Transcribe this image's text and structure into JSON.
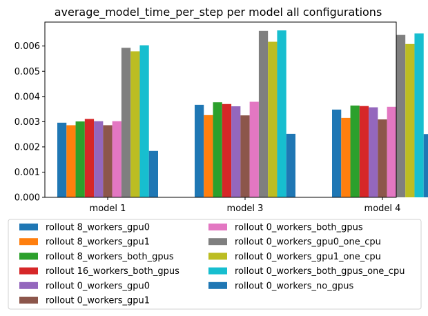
{
  "chart_data": {
    "type": "bar",
    "title": "average_model_time_per_step per model all configurations",
    "xlabel": "",
    "ylabel": "",
    "categories": [
      "model 1",
      "model 3",
      "model 4"
    ],
    "ylim": [
      0,
      0.00695
    ],
    "yticks": [
      "0.000",
      "0.001",
      "0.002",
      "0.003",
      "0.004",
      "0.005",
      "0.006"
    ],
    "ytick_values": [
      0,
      0.001,
      0.002,
      0.003,
      0.004,
      0.005,
      0.006
    ],
    "grid": false,
    "legend_placement": "bottom, two columns",
    "series": [
      {
        "name": "rollout 8_workers_gpu0",
        "color": "#1f77b4",
        "values": [
          0.00296,
          0.00367,
          0.00348
        ]
      },
      {
        "name": "rollout 8_workers_gpu1",
        "color": "#ff7f0e",
        "values": [
          0.00286,
          0.00326,
          0.00315
        ]
      },
      {
        "name": "rollout 8_workers_both_gpus",
        "color": "#2ca02c",
        "values": [
          0.00301,
          0.00377,
          0.00364
        ]
      },
      {
        "name": "rollout 16_workers_both_gpus",
        "color": "#d62728",
        "values": [
          0.00311,
          0.0037,
          0.00362
        ]
      },
      {
        "name": "rollout 0_workers_gpu0",
        "color": "#9467bd",
        "values": [
          0.00302,
          0.00361,
          0.00357
        ]
      },
      {
        "name": "rollout 0_workers_gpu1",
        "color": "#8c564b",
        "values": [
          0.00286,
          0.00325,
          0.00309
        ]
      },
      {
        "name": "rollout 0_workers_both_gpus",
        "color": "#e377c2",
        "values": [
          0.00302,
          0.00379,
          0.00359
        ]
      },
      {
        "name": "rollout 0_workers_gpu0_one_cpu",
        "color": "#7f7f7f",
        "values": [
          0.00593,
          0.0066,
          0.00644
        ]
      },
      {
        "name": "rollout 0_workers_gpu1_one_cpu",
        "color": "#bcbd22",
        "values": [
          0.00579,
          0.00617,
          0.00608
        ]
      },
      {
        "name": "rollout 0_workers_both_gpus_one_cpu",
        "color": "#17becf",
        "values": [
          0.00603,
          0.00662,
          0.0065
        ]
      },
      {
        "name": "rollout 0_workers_no_gpus",
        "color": "#1f77b4",
        "values": [
          0.00184,
          0.00252,
          0.00251
        ]
      }
    ]
  }
}
